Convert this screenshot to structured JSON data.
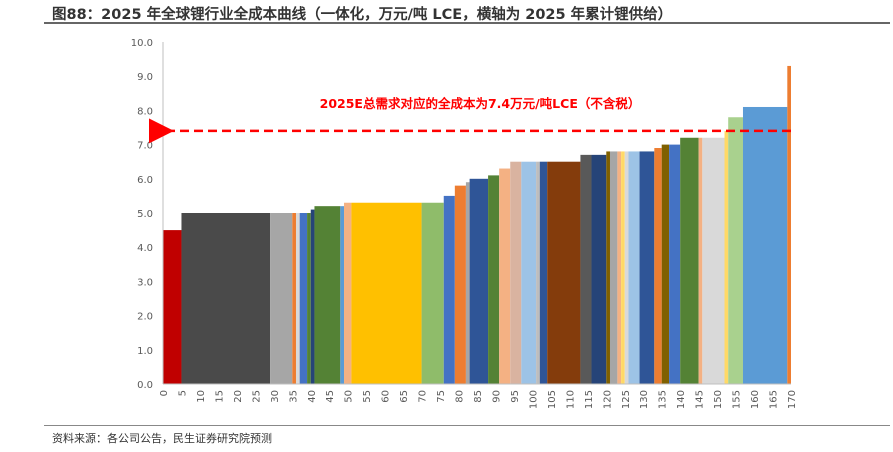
{
  "title": "图88：2025 年全球锂行业全成本曲线（一体化，万元/吨 LCE，横轴为 2025 年累计锂供给）",
  "source": "资料来源：各公司公告，民生证券研究院预测",
  "chart_data": {
    "type": "bar",
    "subtype": "cost-curve",
    "xlabel": "",
    "ylabel": "",
    "xlim": [
      0,
      170
    ],
    "ylim": [
      0,
      10
    ],
    "y_ticks": [
      0,
      1,
      2,
      3,
      4,
      5,
      6,
      7,
      8,
      9,
      10
    ],
    "y_tick_labels": [
      "0.0",
      "1.0",
      "2.0",
      "3.0",
      "4.0",
      "5.0",
      "6.0",
      "7.0",
      "8.0",
      "9.0",
      "10.0"
    ],
    "x_ticks": [
      0,
      5,
      10,
      15,
      20,
      25,
      30,
      35,
      40,
      45,
      50,
      55,
      60,
      65,
      70,
      75,
      80,
      85,
      90,
      95,
      100,
      105,
      110,
      115,
      120,
      125,
      130,
      135,
      140,
      145,
      150,
      155,
      160,
      165,
      170
    ],
    "grid": false,
    "bars": [
      {
        "x0": 0,
        "x1": 5,
        "value": 4.5,
        "color": "#c00000"
      },
      {
        "x0": 5,
        "x1": 29,
        "value": 5.0,
        "color": "#4a4a4a"
      },
      {
        "x0": 29,
        "x1": 35,
        "value": 5.0,
        "color": "#a6a6a6"
      },
      {
        "x0": 35,
        "x1": 36,
        "value": 5.0,
        "color": "#ed7d31"
      },
      {
        "x0": 36,
        "x1": 37,
        "value": 5.0,
        "color": "#d9d9d9"
      },
      {
        "x0": 37,
        "x1": 39,
        "value": 5.0,
        "color": "#4472c4"
      },
      {
        "x0": 39,
        "x1": 40,
        "value": 5.0,
        "color": "#548235"
      },
      {
        "x0": 40,
        "x1": 41,
        "value": 5.1,
        "color": "#264478"
      },
      {
        "x0": 41,
        "x1": 48,
        "value": 5.2,
        "color": "#548235"
      },
      {
        "x0": 48,
        "x1": 49,
        "value": 5.2,
        "color": "#5b9bd5"
      },
      {
        "x0": 49,
        "x1": 51,
        "value": 5.3,
        "color": "#f4b183"
      },
      {
        "x0": 51,
        "x1": 70,
        "value": 5.3,
        "color": "#ffc000"
      },
      {
        "x0": 70,
        "x1": 76,
        "value": 5.3,
        "color": "#8fbc6a"
      },
      {
        "x0": 76,
        "x1": 79,
        "value": 5.5,
        "color": "#4472c4"
      },
      {
        "x0": 79,
        "x1": 82,
        "value": 5.8,
        "color": "#ed7d31"
      },
      {
        "x0": 82,
        "x1": 83,
        "value": 5.9,
        "color": "#a6a6a6"
      },
      {
        "x0": 83,
        "x1": 88,
        "value": 6.0,
        "color": "#2f5597"
      },
      {
        "x0": 88,
        "x1": 91,
        "value": 6.1,
        "color": "#548235"
      },
      {
        "x0": 91,
        "x1": 94,
        "value": 6.3,
        "color": "#f4b183"
      },
      {
        "x0": 94,
        "x1": 97,
        "value": 6.5,
        "color": "#d9b3a0"
      },
      {
        "x0": 97,
        "x1": 101,
        "value": 6.5,
        "color": "#9dc3e6"
      },
      {
        "x0": 101,
        "x1": 102,
        "value": 6.5,
        "color": "#bdbdbd"
      },
      {
        "x0": 102,
        "x1": 104,
        "value": 6.5,
        "color": "#2f5597"
      },
      {
        "x0": 104,
        "x1": 113,
        "value": 6.5,
        "color": "#843c0c"
      },
      {
        "x0": 113,
        "x1": 116,
        "value": 6.7,
        "color": "#595959"
      },
      {
        "x0": 116,
        "x1": 120,
        "value": 6.7,
        "color": "#264478"
      },
      {
        "x0": 120,
        "x1": 121,
        "value": 6.8,
        "color": "#7f6000"
      },
      {
        "x0": 121,
        "x1": 123,
        "value": 6.8,
        "color": "#a6a6a6"
      },
      {
        "x0": 123,
        "x1": 124,
        "value": 6.8,
        "color": "#f4b183"
      },
      {
        "x0": 124,
        "x1": 125,
        "value": 6.8,
        "color": "#ffd966"
      },
      {
        "x0": 125,
        "x1": 126,
        "value": 6.8,
        "color": "#d9d9d9"
      },
      {
        "x0": 126,
        "x1": 129,
        "value": 6.8,
        "color": "#9dc3e6"
      },
      {
        "x0": 129,
        "x1": 133,
        "value": 6.8,
        "color": "#2f5597"
      },
      {
        "x0": 133,
        "x1": 135,
        "value": 6.9,
        "color": "#ed7d31"
      },
      {
        "x0": 135,
        "x1": 137,
        "value": 7.0,
        "color": "#7f6000"
      },
      {
        "x0": 137,
        "x1": 140,
        "value": 7.0,
        "color": "#4472c4"
      },
      {
        "x0": 140,
        "x1": 145,
        "value": 7.2,
        "color": "#548235"
      },
      {
        "x0": 145,
        "x1": 146,
        "value": 7.2,
        "color": "#f4b183"
      },
      {
        "x0": 146,
        "x1": 152,
        "value": 7.2,
        "color": "#d9d9d9"
      },
      {
        "x0": 152,
        "x1": 153,
        "value": 7.4,
        "color": "#ffd966"
      },
      {
        "x0": 153,
        "x1": 157,
        "value": 7.8,
        "color": "#a9d18e"
      },
      {
        "x0": 157,
        "x1": 169,
        "value": 8.1,
        "color": "#5b9bd5"
      },
      {
        "x0": 169,
        "x1": 171,
        "value": 9.3,
        "color": "#ed7d31"
      }
    ],
    "reference_line": {
      "value": 7.4,
      "color": "#ff0000",
      "style": "dashed",
      "direction": "arrow-left",
      "annotation": "2025E总需求对应的全成本为7.4万元/吨LCE（不含税）"
    }
  }
}
